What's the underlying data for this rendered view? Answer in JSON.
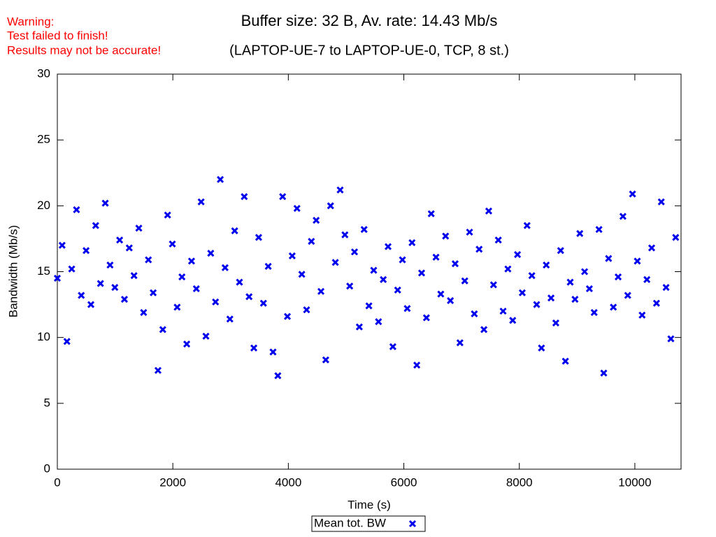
{
  "chart_data": {
    "type": "scatter",
    "title": "Buffer size: 32 B, Av. rate: 14.43 Mb/s",
    "subtitle": "(LAPTOP-UE-7 to LAPTOP-UE-0, TCP, 8 st.)",
    "annotations": [
      "Warning:",
      "Test failed to finish!",
      "Results may not be accurate!"
    ],
    "x_label": "Time (s)",
    "y_label": "Bandwidth (Mb/s)",
    "xlim": [
      0,
      10800
    ],
    "ylim": [
      0,
      30
    ],
    "xticks": [
      0,
      2000,
      4000,
      6000,
      8000,
      10000
    ],
    "yticks": [
      0,
      5,
      10,
      15,
      20,
      25,
      30
    ],
    "legend": "bottom",
    "series": [
      {
        "name": "Mean tot. BW",
        "color": "#0000ee",
        "x": [
          0,
          83,
          166,
          249,
          332,
          415,
          498,
          581,
          664,
          747,
          830,
          913,
          996,
          1079,
          1162,
          1245,
          1328,
          1411,
          1494,
          1577,
          1660,
          1743,
          1826,
          1909,
          1992,
          2075,
          2158,
          2241,
          2324,
          2407,
          2490,
          2573,
          2656,
          2739,
          2822,
          2905,
          2988,
          3071,
          3154,
          3237,
          3320,
          3403,
          3486,
          3569,
          3652,
          3735,
          3818,
          3901,
          3984,
          4067,
          4150,
          4233,
          4316,
          4399,
          4482,
          4565,
          4648,
          4731,
          4814,
          4897,
          4980,
          5063,
          5146,
          5229,
          5312,
          5395,
          5478,
          5561,
          5644,
          5727,
          5810,
          5893,
          5976,
          6059,
          6142,
          6225,
          6308,
          6391,
          6474,
          6557,
          6640,
          6723,
          6806,
          6889,
          6972,
          7055,
          7138,
          7221,
          7304,
          7387,
          7470,
          7553,
          7636,
          7719,
          7802,
          7885,
          7968,
          8051,
          8134,
          8217,
          8300,
          8383,
          8466,
          8549,
          8632,
          8715,
          8798,
          8881,
          8964,
          9047,
          9130,
          9213,
          9296,
          9379,
          9462,
          9545,
          9628,
          9711,
          9794,
          9877,
          9960,
          10043,
          10126,
          10209,
          10292,
          10375,
          10458,
          10541,
          10624,
          10707
        ],
        "values": [
          14.5,
          17,
          9.7,
          15.2,
          19.7,
          13.2,
          16.6,
          12.5,
          18.5,
          14.1,
          20.2,
          15.5,
          13.8,
          17.4,
          12.9,
          16.8,
          14.7,
          18.3,
          11.9,
          15.9,
          13.4,
          7.5,
          10.6,
          19.3,
          17.1,
          12.3,
          14.6,
          9.5,
          15.8,
          13.7,
          20.3,
          10.1,
          16.4,
          12.7,
          22,
          15.3,
          11.4,
          18.1,
          14.2,
          20.7,
          13.1,
          9.2,
          17.6,
          12.6,
          15.4,
          8.9,
          7.1,
          20.7,
          11.6,
          16.2,
          19.8,
          14.8,
          12.1,
          17.3,
          18.9,
          13.5,
          8.3,
          20,
          15.7,
          21.2,
          17.8,
          13.9,
          16.5,
          10.8,
          18.2,
          12.4,
          15.1,
          11.2,
          14.4,
          16.9,
          9.3,
          13.6,
          15.9,
          12.2,
          17.2,
          7.9,
          14.9,
          11.5,
          19.4,
          16.1,
          13.3,
          17.7,
          12.8,
          15.6,
          9.6,
          14.3,
          18,
          11.8,
          16.7,
          10.6,
          19.6,
          14,
          17.4,
          12,
          15.2,
          11.3,
          16.3,
          13.4,
          18.5,
          14.7,
          12.5,
          9.2,
          15.5,
          13,
          11.1,
          16.6,
          8.2,
          14.2,
          12.9,
          17.9,
          15,
          13.7,
          11.9,
          18.2,
          7.3,
          16,
          12.3,
          14.6,
          19.2,
          13.2,
          20.9,
          15.8,
          11.7,
          14.4,
          16.8,
          12.6,
          20.3,
          13.8,
          9.9,
          17.6
        ]
      }
    ]
  }
}
